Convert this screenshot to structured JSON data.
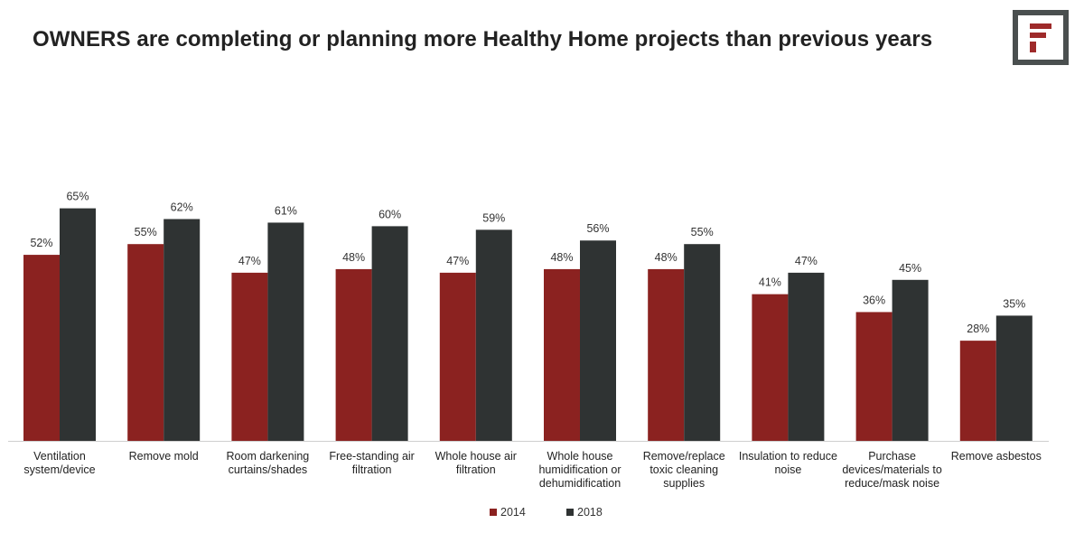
{
  "title": "OWNERS are completing or planning more Healthy Home projects than previous years",
  "logo": {
    "icon": "f-brand-logo-icon",
    "color": "#9e2a2a",
    "frame_color": "#4a4f4f"
  },
  "colors": {
    "2014": "#8b2220",
    "2018": "#2f3333"
  },
  "chart_data": {
    "type": "bar",
    "categories": [
      [
        "Ventilation",
        "system/device"
      ],
      [
        "Remove mold"
      ],
      [
        "Room darkening",
        "curtains/shades"
      ],
      [
        "Free-standing air",
        "filtration"
      ],
      [
        "Whole house air",
        "filtration"
      ],
      [
        "Whole house",
        "humidification or",
        "dehumidification"
      ],
      [
        "Remove/replace",
        "toxic cleaning",
        "supplies"
      ],
      [
        "Insulation to reduce",
        "noise"
      ],
      [
        "Purchase",
        "devices/materials to",
        "reduce/mask noise"
      ],
      [
        "Remove asbestos"
      ]
    ],
    "series": [
      {
        "name": "2014",
        "values": [
          52,
          55,
          47,
          48,
          47,
          48,
          48,
          41,
          36,
          28
        ]
      },
      {
        "name": "2018",
        "values": [
          65,
          62,
          61,
          60,
          59,
          56,
          55,
          47,
          45,
          35
        ]
      }
    ],
    "value_suffix": "%",
    "ylim": [
      0,
      67
    ],
    "legend": "bottom-center",
    "grid": false,
    "xlabel": "",
    "ylabel": ""
  }
}
